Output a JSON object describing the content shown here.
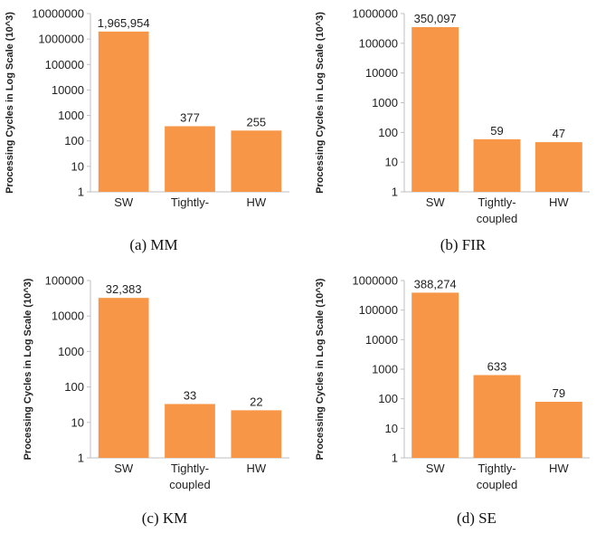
{
  "colors": {
    "bar": "#F79646",
    "axis": "#BFBFBF",
    "text": "#222222"
  },
  "chart_data": [
    {
      "type": "bar",
      "scale": "log",
      "caption": "(a)  MM",
      "ylabel": "Processing Cycles in Log Scale (10^3)",
      "categories": [
        [
          "SW"
        ],
        [
          "Tightly-"
        ],
        [
          "HW"
        ]
      ],
      "values": [
        1965954,
        377,
        255
      ],
      "data_labels": [
        "1,965,954",
        "377",
        "255"
      ],
      "yticks": [
        "1",
        "10",
        "100",
        "1000",
        "10000",
        "100000",
        "1000000",
        "10000000"
      ],
      "ylim": [
        1,
        10000000
      ]
    },
    {
      "type": "bar",
      "scale": "log",
      "caption": "(b)  FIR",
      "ylabel": "Processing Cycles in Log Scale (10^3)",
      "categories": [
        [
          "SW"
        ],
        [
          "Tightly-",
          "coupled"
        ],
        [
          "HW"
        ]
      ],
      "values": [
        350097,
        59,
        47
      ],
      "data_labels": [
        "350,097",
        "59",
        "47"
      ],
      "yticks": [
        "1",
        "10",
        "100",
        "1000",
        "10000",
        "100000",
        "1000000"
      ],
      "ylim": [
        1,
        1000000
      ]
    },
    {
      "type": "bar",
      "scale": "log",
      "caption": "(c)  KM",
      "ylabel": "Processing Cycles in Log Scale (10^3)",
      "categories": [
        [
          "SW"
        ],
        [
          "Tightly-",
          "coupled"
        ],
        [
          "HW"
        ]
      ],
      "values": [
        32383,
        33,
        22
      ],
      "data_labels": [
        "32,383",
        "33",
        "22"
      ],
      "yticks": [
        "1",
        "10",
        "100",
        "1000",
        "10000",
        "100000"
      ],
      "ylim": [
        1,
        100000
      ]
    },
    {
      "type": "bar",
      "scale": "log",
      "caption": "(d)  SE",
      "ylabel": "Processing Cycles in Log Scale (10^3)",
      "categories": [
        [
          "SW"
        ],
        [
          "Tightly-",
          "coupled"
        ],
        [
          "HW"
        ]
      ],
      "values": [
        388274,
        633,
        79
      ],
      "data_labels": [
        "388,274",
        "633",
        "79"
      ],
      "yticks": [
        "1",
        "10",
        "100",
        "1000",
        "10000",
        "100000",
        "1000000"
      ],
      "ylim": [
        1,
        1000000
      ]
    }
  ]
}
